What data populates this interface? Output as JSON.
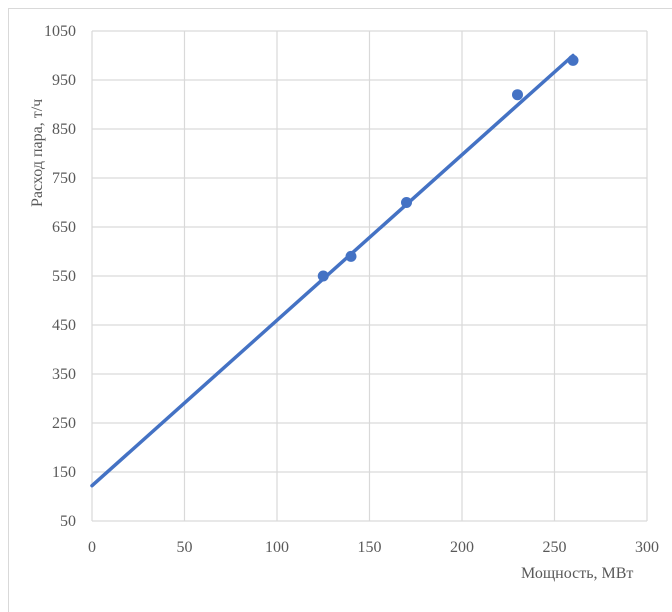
{
  "chart_data": {
    "type": "scatter",
    "title": "",
    "xlabel": "Мощность, МВт",
    "ylabel": "Расход пара, т/ч",
    "xlim": [
      0,
      300
    ],
    "ylim": [
      50,
      1050
    ],
    "x_ticks": [
      "0",
      "50",
      "100",
      "150",
      "200",
      "250",
      "300"
    ],
    "y_ticks": [
      "1050",
      "950",
      "850",
      "750",
      "650",
      "550",
      "450",
      "350",
      "250",
      "150",
      "50"
    ],
    "grid": true,
    "legend": "none",
    "colors": {
      "series": "#4472c4",
      "grid": "#d9d9d9",
      "text": "#595959"
    },
    "series": [
      {
        "points": [
          {
            "x": 125,
            "y": 550
          },
          {
            "x": 140,
            "y": 590
          },
          {
            "x": 170,
            "y": 700
          },
          {
            "x": 230,
            "y": 920
          },
          {
            "x": 260,
            "y": 990
          }
        ]
      }
    ],
    "trendline": {
      "type": "linear",
      "x_start": 0,
      "x_end": 260,
      "y_start": 122,
      "y_end": 1000
    }
  }
}
